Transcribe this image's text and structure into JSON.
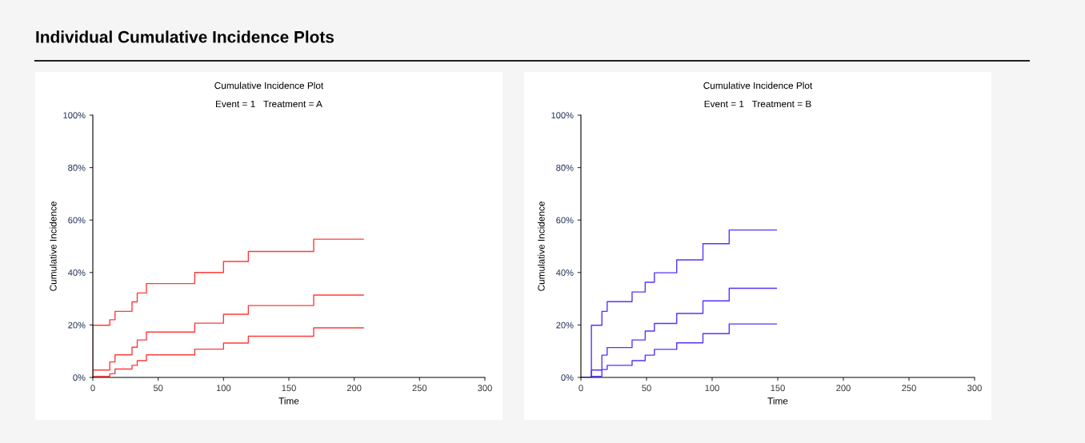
{
  "chart_data": [
    {
      "type": "step",
      "title": "Cumulative Incidence Plot",
      "subtitle": "Event = 1   Treatment = A",
      "xlabel": "Time",
      "ylabel": "Cumulative Incidence",
      "annotations": [
        "Individual Cumulative Incidence Plots"
      ],
      "xlim": [
        0,
        300
      ],
      "xticks": [
        0,
        50,
        100,
        150,
        200,
        250,
        300
      ],
      "ylim": [
        0,
        100
      ],
      "yticks": [
        {
          "value": 0,
          "label": "0%"
        },
        {
          "value": 20,
          "label": "20%"
        },
        {
          "value": 40,
          "label": "40%"
        },
        {
          "value": 60,
          "label": "60%"
        },
        {
          "value": 80,
          "label": "80%"
        },
        {
          "value": 100,
          "label": "100%"
        }
      ],
      "grid": false,
      "legend": false,
      "series": [
        {
          "color": "#ff3b3b",
          "x": [
            0,
            0,
            13,
            17,
            30,
            34,
            41,
            78,
            100,
            119,
            169,
            207
          ],
          "values": [
            0,
            19.9,
            22.0,
            25.2,
            28.8,
            32.2,
            35.8,
            40.0,
            44.2,
            48.0,
            52.7,
            52.7
          ]
        },
        {
          "color": "#ff3b3b",
          "x": [
            0,
            0,
            13,
            17,
            30,
            34,
            41,
            78,
            100,
            119,
            169,
            207
          ],
          "values": [
            0,
            2.8,
            5.9,
            8.6,
            11.5,
            14.3,
            17.3,
            20.7,
            24.1,
            27.4,
            31.4,
            31.4
          ]
        },
        {
          "color": "#ff3b3b",
          "x": [
            0,
            0,
            13,
            17,
            30,
            34,
            41,
            78,
            100,
            119,
            169,
            207
          ],
          "values": [
            0,
            0.4,
            1.4,
            3.2,
            4.6,
            6.4,
            8.6,
            10.8,
            13.1,
            15.7,
            18.9,
            18.9
          ]
        }
      ]
    },
    {
      "type": "step",
      "title": "Cumulative Incidence Plot",
      "subtitle": "Event = 1   Treatment = B",
      "xlabel": "Time",
      "ylabel": "Cumulative Incidence",
      "xlim": [
        0,
        300
      ],
      "xticks": [
        0,
        50,
        100,
        150,
        200,
        250,
        300
      ],
      "ylim": [
        0,
        100
      ],
      "yticks": [
        {
          "value": 0,
          "label": "0%"
        },
        {
          "value": 20,
          "label": "20%"
        },
        {
          "value": 40,
          "label": "40%"
        },
        {
          "value": 60,
          "label": "60%"
        },
        {
          "value": 80,
          "label": "80%"
        },
        {
          "value": 100,
          "label": "100%"
        }
      ],
      "grid": false,
      "legend": false,
      "series": [
        {
          "color": "#5533ff",
          "x": [
            0,
            8,
            16,
            20,
            39,
            49,
            56,
            73,
            93,
            113,
            149
          ],
          "values": [
            0,
            19.9,
            25.2,
            28.9,
            32.6,
            36.3,
            39.9,
            44.8,
            51.0,
            56.2,
            56.2
          ]
        },
        {
          "color": "#5533ff",
          "x": [
            0,
            8,
            16,
            20,
            39,
            49,
            56,
            73,
            93,
            113,
            149
          ],
          "values": [
            0,
            2.8,
            8.5,
            11.4,
            14.3,
            17.7,
            20.6,
            24.4,
            29.2,
            34.0,
            34.0
          ]
        },
        {
          "color": "#5533ff",
          "x": [
            0,
            8,
            16,
            20,
            39,
            49,
            56,
            73,
            93,
            113,
            149
          ],
          "values": [
            0,
            0.4,
            3.0,
            4.6,
            6.4,
            8.5,
            10.7,
            13.2,
            16.7,
            20.4,
            20.4
          ]
        }
      ]
    }
  ]
}
